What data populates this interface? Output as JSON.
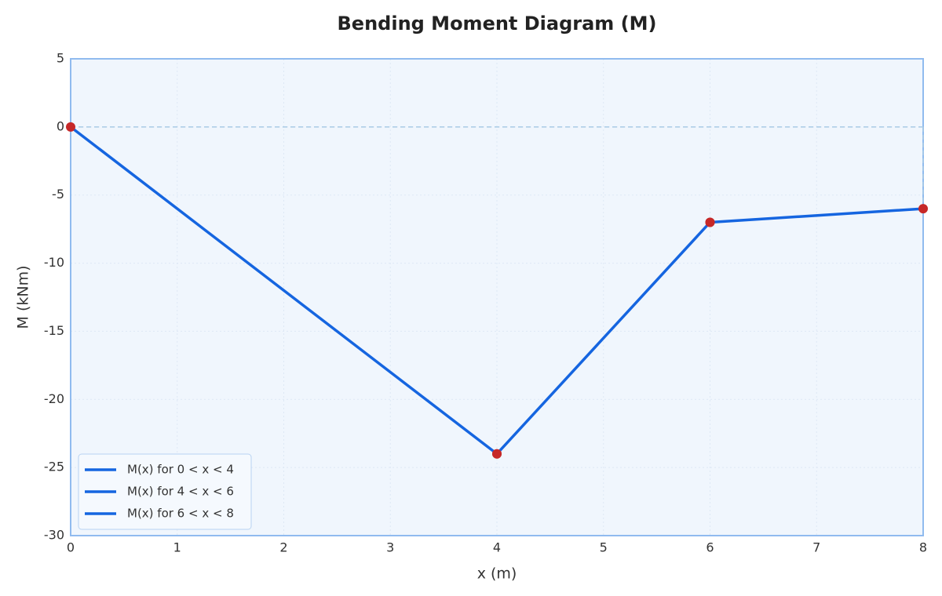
{
  "chart_data": {
    "type": "line",
    "title": "Bending Moment Diagram (M)",
    "x_label": "x (m)",
    "y_label": "M (kNm)",
    "series": [
      {
        "name": "M(x) for 0 < x < 4",
        "color": "#1565e0",
        "x": [
          0,
          4
        ],
        "values": [
          0,
          -24
        ]
      },
      {
        "name": "M(x) for 4 < x < 6",
        "color": "#1565e0",
        "x": [
          4,
          6
        ],
        "values": [
          -24,
          -7
        ]
      },
      {
        "name": "M(x) for 6 < x < 8",
        "color": "#1565e0",
        "x": [
          6,
          8
        ],
        "values": [
          -7,
          -6
        ]
      }
    ],
    "marker_color": "#c62828",
    "xlim": [
      0,
      8
    ],
    "xticks": [
      0,
      1,
      2,
      3,
      4,
      5,
      6,
      7,
      8
    ],
    "ylim": [
      -30,
      5
    ],
    "yticks": [
      5,
      0,
      -5,
      -10,
      -15,
      -20,
      -25,
      -30
    ],
    "grid": true,
    "zero_line": true,
    "legend": "lower left"
  }
}
